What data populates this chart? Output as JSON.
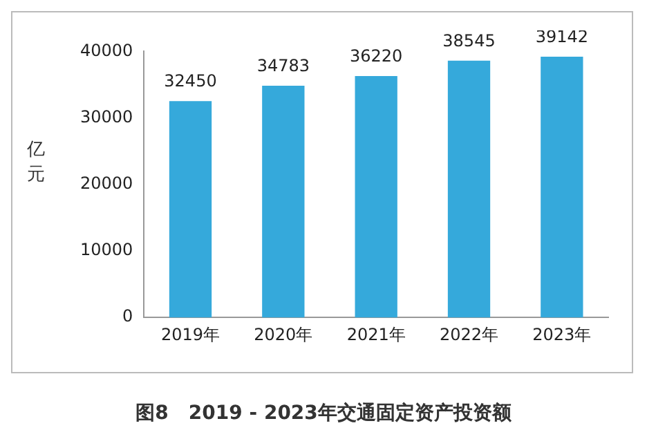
{
  "chart_data": {
    "type": "bar",
    "title": "图8   2019 - 2023年交通固定资产投资额",
    "ylabel": "亿元",
    "categories": [
      "2019年",
      "2020年",
      "2021年",
      "2022年",
      "2023年"
    ],
    "values": [
      32450,
      34783,
      36220,
      38545,
      39142
    ],
    "color": "#35a9db",
    "ylim": [
      0,
      40000
    ],
    "yticks": [
      0,
      10000,
      20000,
      30000,
      40000
    ],
    "grid": false,
    "data_labels": true,
    "legend": false
  }
}
